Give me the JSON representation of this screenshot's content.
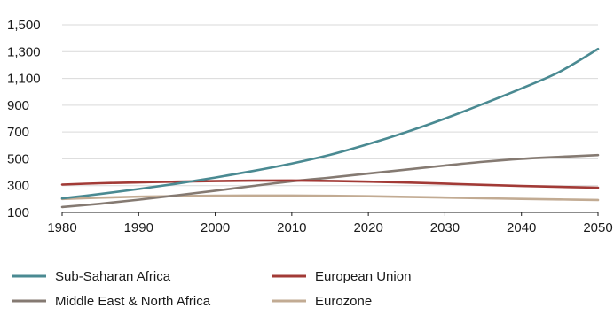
{
  "chart_data": {
    "type": "line",
    "title": "",
    "xlabel": "",
    "ylabel": "",
    "xlim": [
      1980,
      2050
    ],
    "ylim": [
      100,
      1500
    ],
    "x_ticks": [
      1980,
      1990,
      2000,
      2010,
      2020,
      2030,
      2040,
      2050
    ],
    "x_tick_labels": [
      "1980",
      "1990",
      "2000",
      "2010",
      "2020",
      "2030",
      "2040",
      "2050"
    ],
    "y_ticks": [
      100,
      300,
      500,
      700,
      900,
      1100,
      1300,
      1500
    ],
    "y_tick_labels": [
      "100",
      "300",
      "500",
      "700",
      "900",
      "1,100",
      "1,300",
      "1,500"
    ],
    "grid": "horizontal",
    "legend_position": "bottom",
    "x": [
      1980,
      1985,
      1990,
      1995,
      2000,
      2005,
      2010,
      2015,
      2020,
      2025,
      2030,
      2035,
      2040,
      2045,
      2050
    ],
    "series": [
      {
        "name": "Sub-Saharan Africa",
        "color": "#4a8a92",
        "values": [
          205,
          238,
          275,
          315,
          360,
          410,
          465,
          530,
          610,
          700,
          800,
          910,
          1025,
          1150,
          1320
        ]
      },
      {
        "name": "European Union",
        "color": "#a23a36",
        "values": [
          308,
          318,
          324,
          330,
          334,
          337,
          338,
          335,
          330,
          323,
          315,
          306,
          298,
          291,
          285
        ]
      },
      {
        "name": "Middle East & North Africa",
        "color": "#857a72",
        "values": [
          140,
          165,
          195,
          228,
          262,
          298,
          332,
          360,
          390,
          420,
          450,
          478,
          500,
          515,
          528
        ]
      },
      {
        "name": "Eurozone",
        "color": "#c2ab93",
        "values": [
          200,
          210,
          218,
          222,
          225,
          226,
          226,
          224,
          221,
          216,
          211,
          206,
          201,
          197,
          193
        ]
      }
    ]
  }
}
